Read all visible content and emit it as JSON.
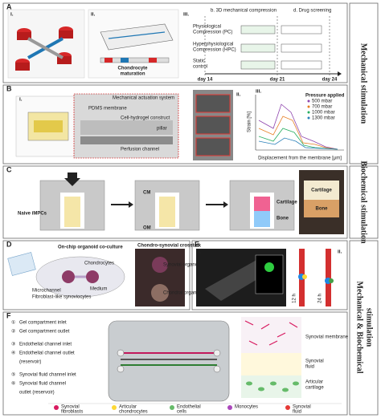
{
  "panels": {
    "a": {
      "label": "A",
      "sub": [
        "i.",
        "ii.",
        "iii."
      ],
      "caption": [
        "Chondrocyte",
        "maturation"
      ],
      "steps": [
        "b. 3D mechanical compression",
        "d. Drug screening"
      ],
      "conditions": [
        [
          "Physiological",
          "Compression (PC)"
        ],
        [
          "Hyperphysiological",
          "Compression (HPC)"
        ],
        [
          "Static",
          "control"
        ]
      ],
      "days": [
        "day 14",
        "day 21",
        "day 24"
      ]
    },
    "b": {
      "label": "B",
      "sub": [
        "i.",
        "ii.",
        "iii."
      ],
      "labels": [
        "Mechanical actuation system",
        "PDMS membrane",
        "Cell-hydrogel construct",
        "Perfusion channel",
        "pillar"
      ],
      "ylabel": "Strain [%]",
      "xlabel": "Displacement from the membrane [μm]",
      "legend_title": "Pressure applied",
      "legend": [
        "500 mbar",
        "700 mbar",
        "1000 mbar",
        "1300 mbar"
      ]
    },
    "c": {
      "label": "C",
      "labels": [
        "Naive iMPCs",
        "CM",
        "OM",
        "Cartilage",
        "Bone"
      ],
      "photo": [
        "Cartilage",
        "Bone"
      ]
    },
    "d": {
      "label": "D",
      "labels": [
        "On-chip organoid co-culture",
        "Chondro-synovial crosstalk",
        "Synovial organoid",
        "Chondral organoid",
        "Medium",
        "Chondrocytes",
        "Microchannel",
        "Fibroblast-like synoviocytes"
      ]
    },
    "e": {
      "label": "E",
      "sub": [
        "i.",
        "ii."
      ],
      "times": [
        "12 h",
        "24 h"
      ]
    },
    "f": {
      "label": "F",
      "items": [
        [
          "①",
          "Gel compartment inlet"
        ],
        [
          "②",
          "Gel compartment outlet"
        ],
        [
          "③",
          "Endothelial channel inlet"
        ],
        [
          "④",
          "Endothelial channel outlet"
        ],
        [
          "",
          "(reservoir)"
        ],
        [
          "⑤",
          "Synovial fluid channel inlet"
        ],
        [
          "⑥",
          "Synovial fluid channel"
        ],
        [
          "",
          "outlet (reservoir)"
        ]
      ],
      "layers": [
        "Synovial membrane",
        [
          "Synovial",
          "fluid"
        ],
        [
          "Articular",
          "cartilage"
        ]
      ],
      "legend": [
        [
          "Synovial",
          "fibroblasts"
        ],
        [
          "Articular",
          "chondrocytes"
        ],
        [
          "Endothelial",
          "cells"
        ],
        [
          "Monocytes"
        ],
        [
          "Synovial",
          "fluid"
        ]
      ]
    }
  },
  "side_labels": [
    [
      "Mechanical stimulation"
    ],
    [
      "Biochemical stimulation"
    ],
    [
      "Mechanical & Biochemical",
      "stimulation"
    ]
  ]
}
